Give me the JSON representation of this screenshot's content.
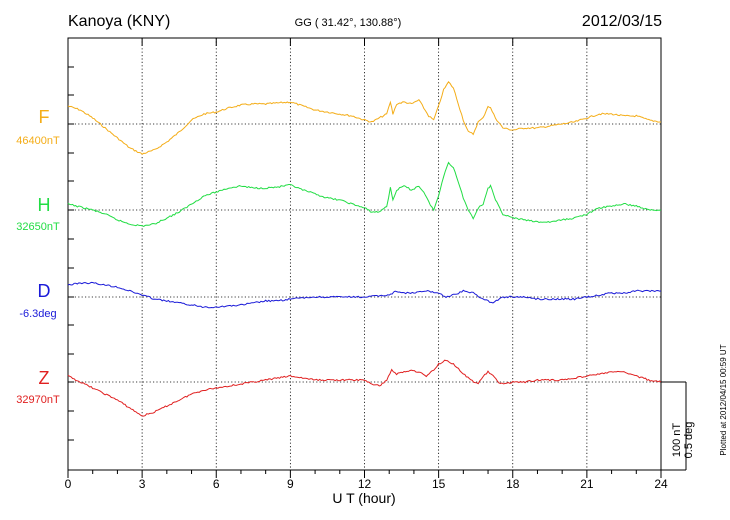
{
  "header": {
    "station": "Kanoya (KNY)",
    "coords": "GG ( 31.42°, 130.88°)",
    "date": "2012/03/15"
  },
  "plotted_note": "Plotted at 2012/04/15 00:59 UT",
  "scale_bar": {
    "line1": "100 nT",
    "line2": "0.5 deg"
  },
  "chart_data": {
    "type": "line",
    "xlabel": "U T (hour)",
    "xlim": [
      0,
      24
    ],
    "xticks": [
      "0",
      "3",
      "6",
      "9",
      "12",
      "15",
      "18",
      "21",
      "24"
    ],
    "grid": true,
    "units": "nT per division (D in 0.5 deg per division)",
    "series": [
      {
        "name": "F",
        "baseline_label": "46400nT",
        "color": "#f4ad18",
        "x": [
          0,
          0.5,
          1,
          1.5,
          2,
          2.5,
          3,
          3.5,
          4,
          4.5,
          5,
          5.5,
          6,
          6.5,
          7,
          7.5,
          8,
          8.5,
          9,
          9.5,
          10,
          10.5,
          11,
          11.5,
          12,
          12.3,
          12.6,
          12.9,
          13.05,
          13.15,
          13.3,
          13.6,
          13.9,
          14.2,
          14.4,
          14.6,
          14.8,
          15,
          15.2,
          15.4,
          15.6,
          15.8,
          16,
          16.2,
          16.4,
          16.6,
          16.8,
          17,
          17.1,
          17.3,
          17.6,
          18,
          18.5,
          19,
          19.5,
          20,
          20.5,
          21,
          21.5,
          22,
          22.5,
          23,
          23.5,
          24
        ],
        "values": [
          -18,
          -14,
          -6,
          4,
          14,
          24,
          30,
          26,
          18,
          8,
          -4,
          -10,
          -12,
          -16,
          -19,
          -20,
          -20,
          -21,
          -22,
          -18,
          -14,
          -12,
          -10,
          -8,
          -4,
          -2,
          -6,
          -10,
          -22,
          -10,
          -20,
          -22,
          -20,
          -24,
          -16,
          -8,
          -4,
          -18,
          -34,
          -42,
          -36,
          -20,
          -4,
          8,
          10,
          -2,
          -6,
          -18,
          -16,
          -6,
          4,
          6,
          4,
          4,
          2,
          0,
          -2,
          -6,
          -10,
          -10,
          -8,
          -8,
          -4,
          -2
        ]
      },
      {
        "name": "H",
        "baseline_label": "32650nT",
        "color": "#22dd44",
        "x": [
          0,
          0.5,
          1,
          1.5,
          2,
          2.5,
          3,
          3.5,
          4,
          4.5,
          5,
          5.5,
          6,
          6.5,
          7,
          7.5,
          8,
          8.5,
          9,
          9.5,
          10,
          10.5,
          11,
          11.5,
          12,
          12.3,
          12.6,
          12.9,
          13.05,
          13.15,
          13.3,
          13.6,
          13.9,
          14.2,
          14.4,
          14.6,
          14.8,
          15,
          15.2,
          15.4,
          15.6,
          15.8,
          16,
          16.2,
          16.4,
          16.6,
          16.8,
          17,
          17.1,
          17.3,
          17.6,
          18,
          18.5,
          19,
          19.5,
          20,
          20.5,
          21,
          21.5,
          22,
          22.5,
          23,
          23.5,
          24
        ],
        "values": [
          -6,
          -3,
          0,
          4,
          10,
          14,
          16,
          14,
          8,
          2,
          -6,
          -14,
          -18,
          -22,
          -24,
          -22,
          -22,
          -23,
          -25,
          -20,
          -16,
          -12,
          -10,
          -6,
          -2,
          2,
          2,
          -4,
          -22,
          -10,
          -20,
          -24,
          -20,
          -24,
          -18,
          -8,
          0,
          -14,
          -34,
          -48,
          -42,
          -28,
          -12,
          0,
          8,
          -2,
          -6,
          -22,
          -24,
          -10,
          4,
          8,
          10,
          12,
          12,
          10,
          8,
          4,
          -2,
          -4,
          -6,
          -4,
          0,
          0
        ]
      },
      {
        "name": "D",
        "baseline_label": "-6.3deg",
        "color": "#1a1ad8",
        "x": [
          0,
          0.5,
          1,
          1.5,
          2,
          2.5,
          3,
          3.5,
          4,
          4.5,
          5,
          5.5,
          6,
          6.5,
          7,
          7.5,
          8,
          8.5,
          9,
          9.5,
          10,
          10.5,
          11,
          11.5,
          12,
          12.5,
          13,
          13.3,
          13.6,
          14,
          14.5,
          15,
          15.3,
          15.6,
          16,
          16.4,
          16.8,
          17.2,
          17.6,
          18,
          18.5,
          19,
          19.5,
          20,
          20.5,
          21,
          21.5,
          22,
          22.5,
          23,
          23.5,
          24
        ],
        "values": [
          -12,
          -14,
          -14,
          -12,
          -10,
          -6,
          -2,
          2,
          4,
          6,
          8,
          10,
          10,
          9,
          8,
          6,
          4,
          4,
          2,
          1,
          0,
          0,
          0,
          0,
          0,
          -1,
          -2,
          -6,
          -4,
          -4,
          -6,
          -4,
          0,
          -2,
          -6,
          -4,
          2,
          6,
          0,
          0,
          0,
          2,
          2,
          2,
          2,
          0,
          -2,
          -4,
          -4,
          -6,
          -6,
          -6
        ]
      },
      {
        "name": "Z",
        "baseline_label": "32970nT",
        "color": "#e02020",
        "x": [
          0,
          0.5,
          1,
          1.5,
          2,
          2.5,
          3,
          3.5,
          4,
          4.5,
          5,
          5.5,
          6,
          6.5,
          7,
          7.5,
          8,
          8.5,
          9,
          9.5,
          10,
          10.5,
          11,
          11.5,
          12,
          12.3,
          12.6,
          12.9,
          13.1,
          13.3,
          13.6,
          13.9,
          14.2,
          14.5,
          14.8,
          15,
          15.3,
          15.6,
          16,
          16.3,
          16.6,
          16.8,
          17,
          17.2,
          17.5,
          18,
          18.5,
          19,
          19.5,
          20,
          20.5,
          21,
          21.5,
          22,
          22.5,
          23,
          23.5,
          24
        ],
        "values": [
          -6,
          0,
          6,
          12,
          18,
          26,
          34,
          30,
          24,
          18,
          12,
          8,
          6,
          4,
          2,
          0,
          -2,
          -4,
          -6,
          -4,
          -2,
          -2,
          -2,
          -2,
          -2,
          2,
          4,
          -2,
          -12,
          -8,
          -10,
          -12,
          -10,
          -6,
          -12,
          -18,
          -22,
          -18,
          -8,
          -2,
          2,
          -6,
          -10,
          -6,
          2,
          0,
          0,
          -2,
          -2,
          -2,
          -4,
          -6,
          -8,
          -10,
          -10,
          -6,
          -2,
          0
        ]
      }
    ]
  }
}
